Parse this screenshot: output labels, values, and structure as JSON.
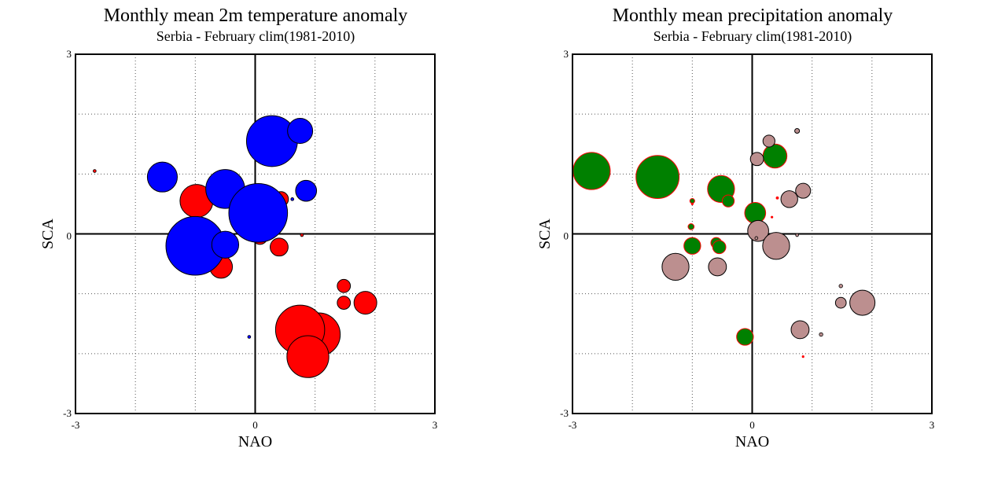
{
  "chart_data": [
    {
      "type": "scatter",
      "title": "Monthly mean 2m temperature anomaly",
      "subtitle": "Serbia - February  clim(1981-2010)",
      "xlabel": "NAO",
      "ylabel": "SCA",
      "xlim": [
        -3,
        3
      ],
      "ylim": [
        -3,
        3
      ],
      "xticks": [
        "-3",
        "0",
        "3"
      ],
      "yticks": [
        "-3",
        "0",
        "3"
      ],
      "grid": true,
      "grid_style": "dotted",
      "series": [
        {
          "color": "#ff0000",
          "points": [
            {
              "x": -2.68,
              "y": 1.05,
              "size": 0.05
            },
            {
              "x": 0.1,
              "y": 1.25,
              "size": 0.04
            },
            {
              "x": -0.98,
              "y": 0.55,
              "size": 0.55
            },
            {
              "x": 0.43,
              "y": 0.58,
              "size": 0.25
            },
            {
              "x": 0.08,
              "y": -0.05,
              "size": 0.25
            },
            {
              "x": 0.78,
              "y": -0.02,
              "size": 0.05
            },
            {
              "x": 0.4,
              "y": -0.22,
              "size": 0.3
            },
            {
              "x": -0.58,
              "y": -0.15,
              "size": 0.05
            },
            {
              "x": -0.57,
              "y": -0.55,
              "size": 0.38
            },
            {
              "x": 1.48,
              "y": -0.87,
              "size": 0.22
            },
            {
              "x": 1.48,
              "y": -1.15,
              "size": 0.22
            },
            {
              "x": 1.84,
              "y": -1.15,
              "size": 0.38
            },
            {
              "x": 1.06,
              "y": -1.68,
              "size": 0.72
            },
            {
              "x": 0.75,
              "y": -1.6,
              "size": 0.82
            },
            {
              "x": 0.88,
              "y": -2.05,
              "size": 0.7
            }
          ]
        },
        {
          "color": "#0000ff",
          "points": [
            {
              "x": 0.28,
              "y": 1.55,
              "size": 0.85
            },
            {
              "x": 0.75,
              "y": 1.72,
              "size": 0.42
            },
            {
              "x": -1.55,
              "y": 0.95,
              "size": 0.5
            },
            {
              "x": -0.5,
              "y": 0.75,
              "size": 0.65
            },
            {
              "x": 0.05,
              "y": 0.35,
              "size": 0.98
            },
            {
              "x": 0.85,
              "y": 0.72,
              "size": 0.35
            },
            {
              "x": 0.62,
              "y": 0.58,
              "size": 0.05
            },
            {
              "x": -1.0,
              "y": 0.1,
              "size": 0.1
            },
            {
              "x": -1.0,
              "y": -0.2,
              "size": 0.98
            },
            {
              "x": -0.5,
              "y": -0.18,
              "size": 0.45
            },
            {
              "x": -0.1,
              "y": -1.72,
              "size": 0.05
            }
          ]
        }
      ]
    },
    {
      "type": "scatter",
      "title": "Monthly mean precipitation anomaly",
      "subtitle": "Serbia - February  clim(1981-2010)",
      "xlabel": "NAO",
      "ylabel": "SCA",
      "xlim": [
        -3,
        3
      ],
      "ylim": [
        -3,
        3
      ],
      "xticks": [
        "-3",
        "0",
        "3"
      ],
      "yticks": [
        "-3",
        "0",
        "3"
      ],
      "grid": true,
      "grid_style": "dotted",
      "series": [
        {
          "color": "#008000",
          "edge_color": "#ff0000",
          "points": [
            {
              "x": -2.68,
              "y": 1.05,
              "size": 0.62
            },
            {
              "x": -1.58,
              "y": 0.95,
              "size": 0.72
            },
            {
              "x": -1.0,
              "y": 0.55,
              "size": 0.08
            },
            {
              "x": -0.52,
              "y": 0.75,
              "size": 0.45
            },
            {
              "x": -0.4,
              "y": 0.55,
              "size": 0.2
            },
            {
              "x": 0.05,
              "y": 0.35,
              "size": 0.35
            },
            {
              "x": 0.38,
              "y": 1.3,
              "size": 0.4
            },
            {
              "x": -1.02,
              "y": 0.12,
              "size": 0.1
            },
            {
              "x": -1.0,
              "y": -0.2,
              "size": 0.28
            },
            {
              "x": -0.6,
              "y": -0.15,
              "size": 0.18
            },
            {
              "x": -0.55,
              "y": -0.22,
              "size": 0.22
            },
            {
              "x": -0.12,
              "y": -1.72,
              "size": 0.28
            }
          ]
        },
        {
          "color": "#bc8f8f",
          "edge_color": "#000000",
          "points": [
            {
              "x": 0.75,
              "y": 1.72,
              "size": 0.08
            },
            {
              "x": 0.28,
              "y": 1.55,
              "size": 0.2
            },
            {
              "x": 0.08,
              "y": 1.25,
              "size": 0.22
            },
            {
              "x": 0.85,
              "y": 0.72,
              "size": 0.25
            },
            {
              "x": 0.62,
              "y": 0.58,
              "size": 0.28
            },
            {
              "x": 0.1,
              "y": 0.05,
              "size": 0.35
            },
            {
              "x": 0.4,
              "y": -0.2,
              "size": 0.45
            },
            {
              "x": 0.75,
              "y": -0.02,
              "size": 0.05
            },
            {
              "x": 0.07,
              "y": -0.07,
              "size": 0.05
            },
            {
              "x": -1.28,
              "y": -0.55,
              "size": 0.45
            },
            {
              "x": -0.58,
              "y": -0.55,
              "size": 0.3
            },
            {
              "x": 1.48,
              "y": -0.87,
              "size": 0.06
            },
            {
              "x": 1.48,
              "y": -1.15,
              "size": 0.18
            },
            {
              "x": 1.84,
              "y": -1.15,
              "size": 0.42
            },
            {
              "x": 0.8,
              "y": -1.6,
              "size": 0.3
            },
            {
              "x": 1.15,
              "y": -1.68,
              "size": 0.06
            }
          ]
        },
        {
          "color": "#ff0000",
          "edge_color": "#ff0000",
          "points": [
            {
              "x": 0.42,
              "y": 0.6,
              "size": 0.04
            },
            {
              "x": 0.33,
              "y": 0.28,
              "size": 0.02
            },
            {
              "x": 0.85,
              "y": -2.05,
              "size": 0.02
            },
            {
              "x": -1.0,
              "y": 0.5,
              "size": 0.03
            }
          ]
        }
      ]
    }
  ]
}
